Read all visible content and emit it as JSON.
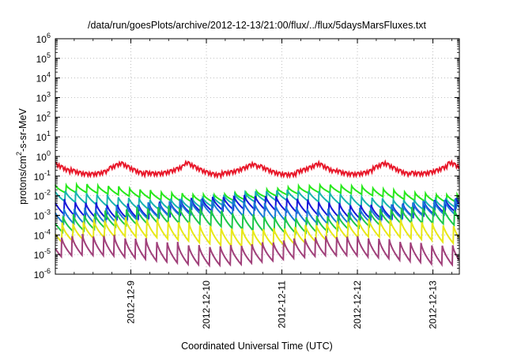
{
  "chart_data": {
    "type": "line",
    "title": "/data/run/goesPlots/archive/2012-12-13/21:00/flux/../flux/5daysMarsFluxes.txt",
    "xlabel": "Coordinated Universal Time (UTC)",
    "ylabel_parts": [
      "protons/cm",
      "2",
      "-s-sr-MeV"
    ],
    "y_scale": "log",
    "ylim": [
      1e-06,
      1000000.0
    ],
    "y_tick_exponents": [
      -6,
      -5,
      -4,
      -3,
      -2,
      -1,
      0,
      1,
      2,
      3,
      4,
      5,
      6
    ],
    "y_tick_base": "10",
    "x_unit": "day",
    "xlim": [
      0,
      5.35
    ],
    "x_ticks": [
      {
        "label": "2012-12-9",
        "x": 1
      },
      {
        "label": "2012-12-10",
        "x": 2
      },
      {
        "label": "2012-12-11",
        "x": 3
      },
      {
        "label": "2012-12-12",
        "x": 4
      },
      {
        "label": "2012-12-13",
        "x": 5
      }
    ],
    "grid": true,
    "series": [
      {
        "color": "#e8182a",
        "peak_exp": -0.35,
        "drop": 0.55,
        "kind": "slow"
      },
      {
        "color": "#27e81b",
        "peak_exp": -1.65,
        "drop": 0.45,
        "kind": "saw",
        "period": 0.14,
        "phase": 0.0
      },
      {
        "color": "#18b4b0",
        "peak_exp": -1.9,
        "drop": 0.6,
        "kind": "saw",
        "period": 0.14,
        "phase": 0.01
      },
      {
        "color": "#1818d8",
        "peak_exp": -2.15,
        "drop": 0.8,
        "kind": "saw",
        "period": 0.14,
        "phase": 0.02
      },
      {
        "color": "#1a7ad8",
        "peak_exp": -2.35,
        "drop": 0.85,
        "kind": "saw",
        "period": 0.14,
        "phase": 0.03
      },
      {
        "color": "#1ec84a",
        "peak_exp": -2.75,
        "drop": 0.9,
        "kind": "saw",
        "period": 0.14,
        "phase": 0.04
      },
      {
        "color": "#e8e818",
        "peak_exp": -3.35,
        "drop": 1.0,
        "kind": "saw",
        "period": 0.14,
        "phase": 0.05
      },
      {
        "color": "#a0407a",
        "peak_exp": -4.2,
        "drop": 1.1,
        "kind": "saw",
        "period": 0.14,
        "phase": 0.06
      }
    ]
  }
}
